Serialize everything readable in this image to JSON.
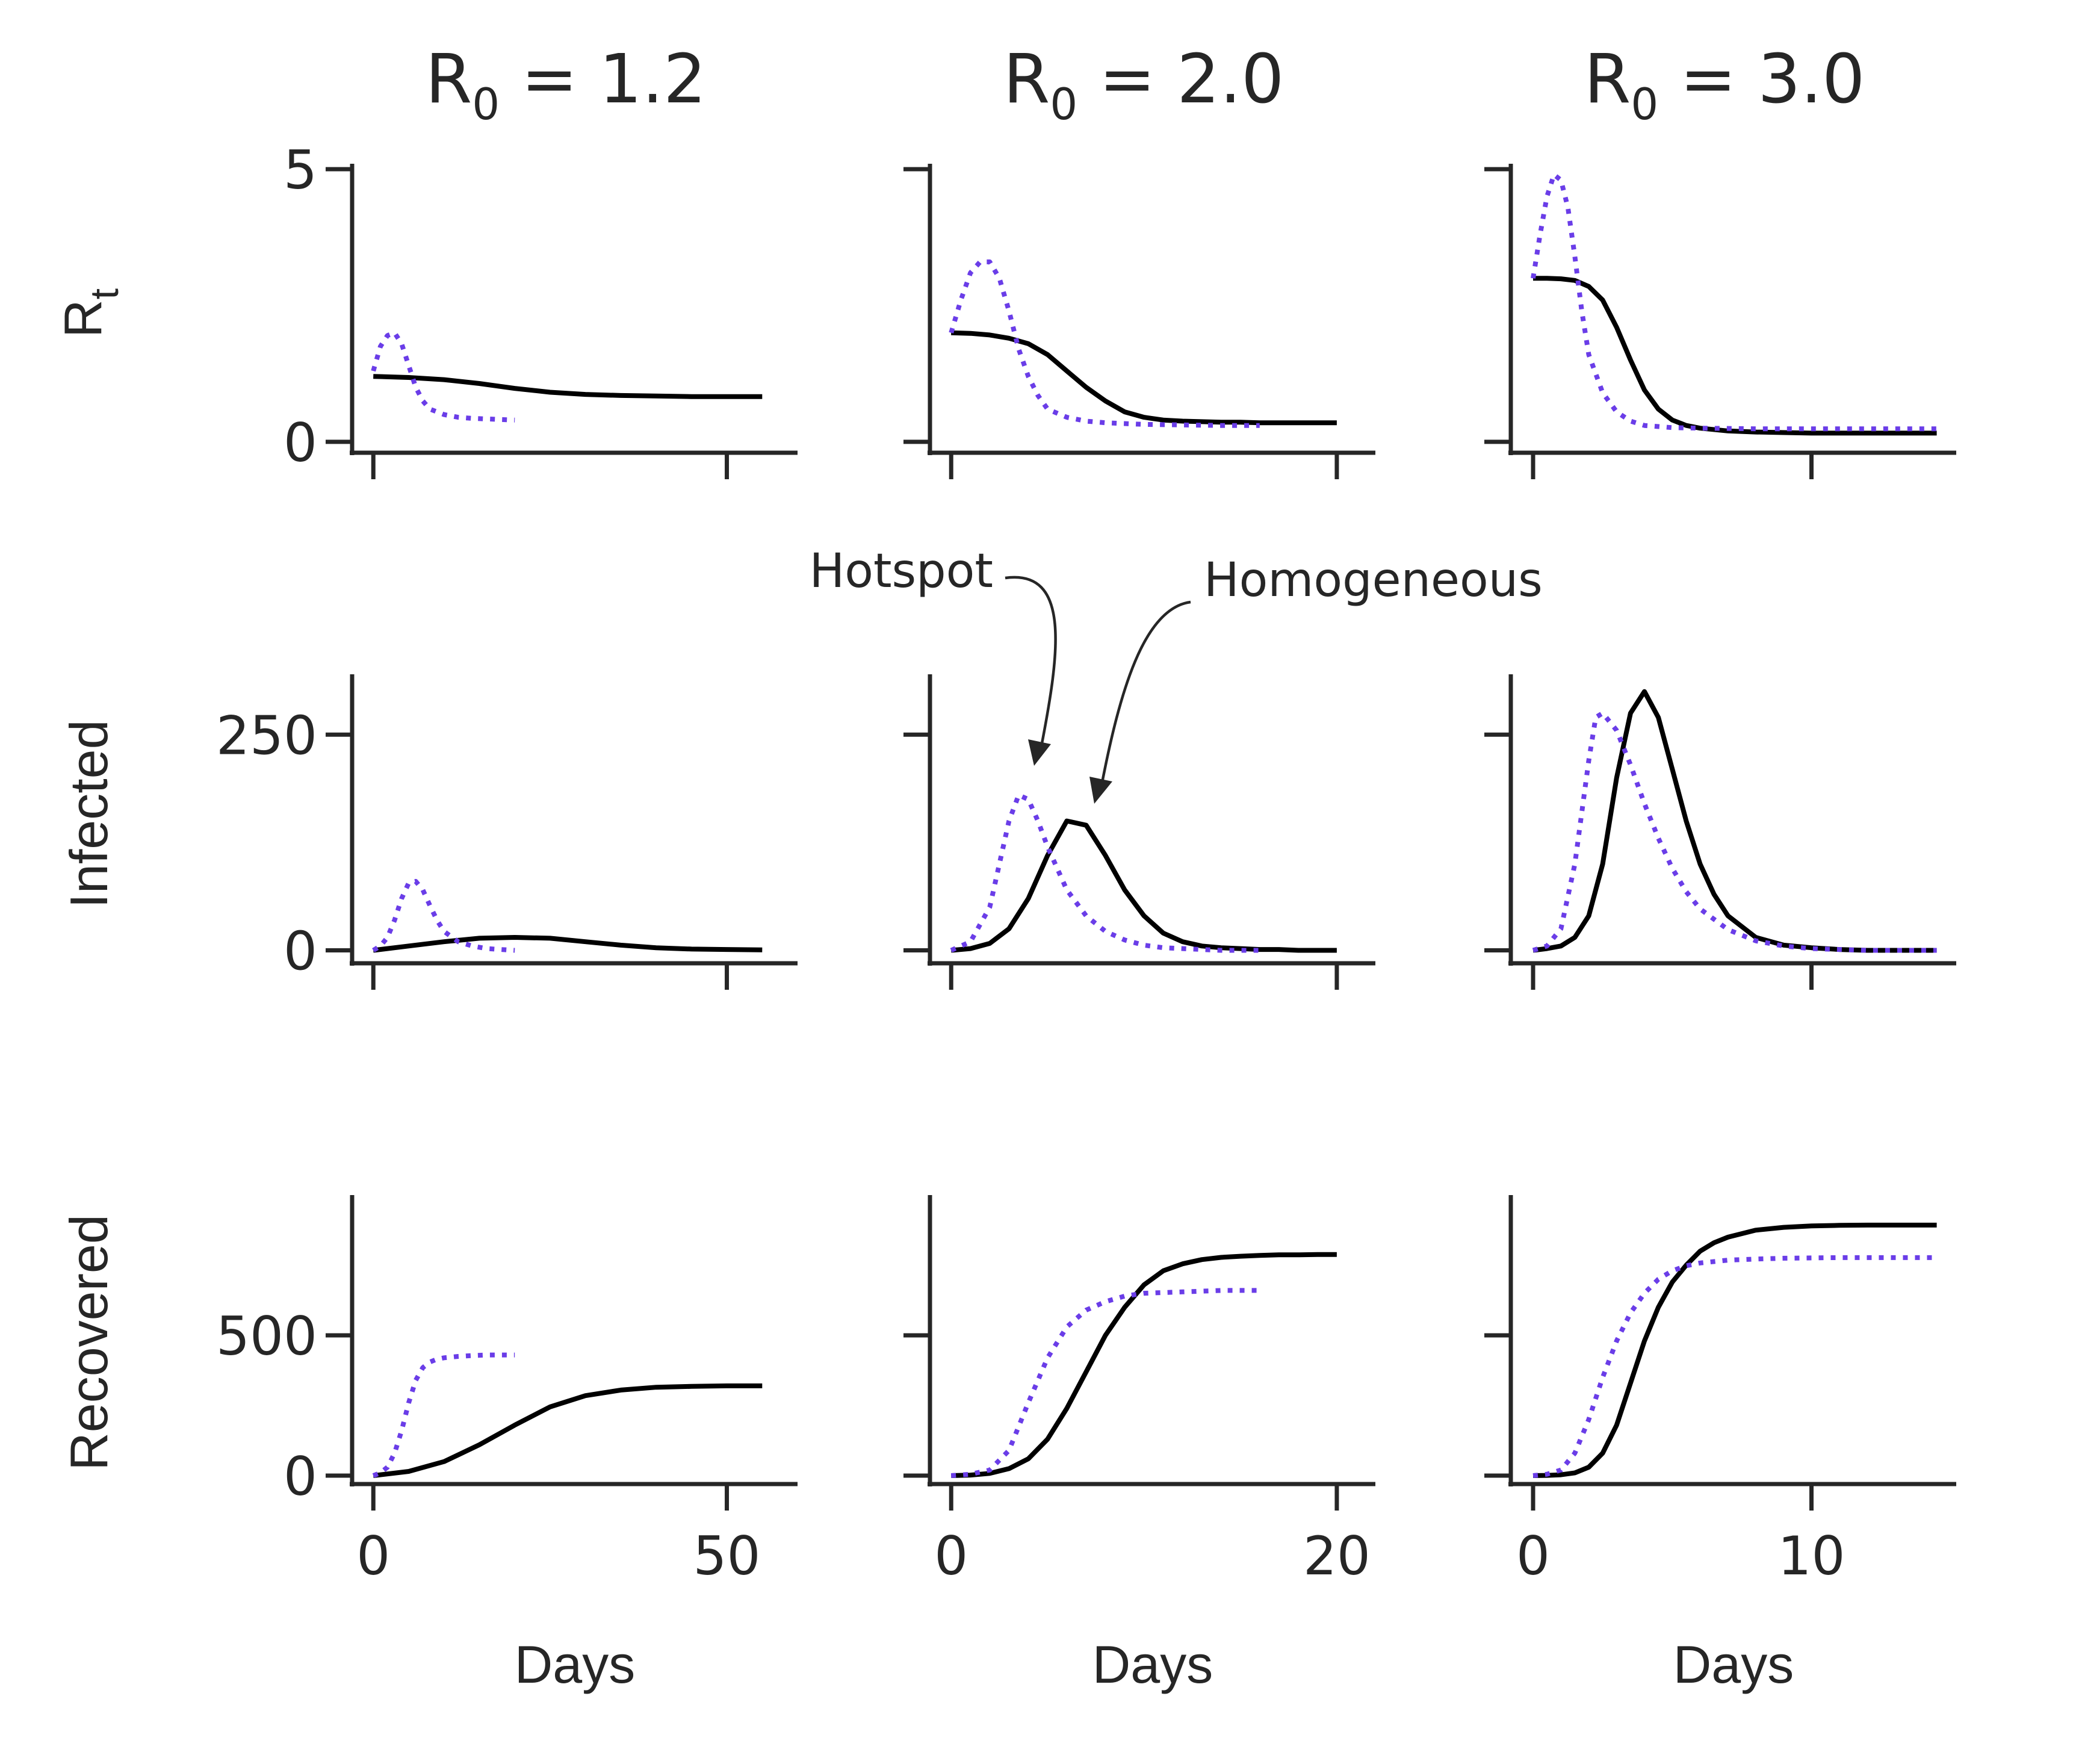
{
  "figure": {
    "row_labels": [
      {
        "main": "R",
        "sub": "t"
      },
      {
        "main": "Infected",
        "sub": ""
      },
      {
        "main": "Recovered",
        "sub": ""
      }
    ],
    "col_titles": [
      {
        "main": "R",
        "sub": "0",
        "rest": " = 1.2"
      },
      {
        "main": "R",
        "sub": "0",
        "rest": " = 2.0"
      },
      {
        "main": "R",
        "sub": "0",
        "rest": " = 3.0"
      }
    ],
    "xlabel": "Days",
    "annotations": {
      "hotspot": "Hotspot",
      "homogeneous": "Homogeneous"
    }
  },
  "colors": {
    "homogeneous": "#000000",
    "hotspot": "#6a3de8",
    "axis": "#262626"
  },
  "chart_data": [
    {
      "type": "line",
      "row": 0,
      "col": 0,
      "title": "R0 = 1.2",
      "ylabel": "Rt",
      "xlabel": "",
      "xlim": [
        -3,
        60
      ],
      "ylim": [
        -0.2,
        5.1
      ],
      "xticks": [
        0,
        50
      ],
      "yticks": [
        0,
        5
      ],
      "ytick_labels": [
        "0",
        "5"
      ],
      "xtick_labels": [
        "",
        ""
      ],
      "series": [
        {
          "name": "Homogeneous",
          "style": "solid",
          "x": [
            0,
            5,
            10,
            15,
            20,
            25,
            30,
            35,
            40,
            45,
            50,
            55
          ],
          "y": [
            1.2,
            1.18,
            1.14,
            1.07,
            0.98,
            0.91,
            0.87,
            0.85,
            0.84,
            0.83,
            0.83,
            0.83
          ]
        },
        {
          "name": "Hotspot",
          "style": "dotted",
          "x": [
            0,
            1,
            2,
            3,
            4,
            5,
            6,
            7,
            8,
            10,
            12,
            14,
            16,
            18,
            20
          ],
          "y": [
            1.3,
            1.75,
            1.95,
            2.0,
            1.8,
            1.4,
            1.0,
            0.75,
            0.6,
            0.5,
            0.45,
            0.43,
            0.42,
            0.41,
            0.4
          ]
        }
      ]
    },
    {
      "type": "line",
      "row": 0,
      "col": 1,
      "title": "R0 = 2.0",
      "ylabel": "",
      "xlabel": "",
      "xlim": [
        -1.1,
        22
      ],
      "ylim": [
        -0.2,
        5.1
      ],
      "xticks": [
        0,
        20
      ],
      "yticks": [
        0,
        5
      ],
      "ytick_labels": [
        "",
        ""
      ],
      "xtick_labels": [
        "",
        ""
      ],
      "series": [
        {
          "name": "Homogeneous",
          "style": "solid",
          "x": [
            0,
            1,
            2,
            3,
            4,
            5,
            6,
            7,
            8,
            9,
            10,
            11,
            12,
            13,
            14,
            15,
            16,
            17,
            18,
            19,
            20
          ],
          "y": [
            2.0,
            1.99,
            1.96,
            1.9,
            1.8,
            1.6,
            1.3,
            1.0,
            0.75,
            0.55,
            0.45,
            0.4,
            0.38,
            0.37,
            0.36,
            0.36,
            0.35,
            0.35,
            0.35,
            0.35,
            0.35
          ]
        },
        {
          "name": "Hotspot",
          "style": "dotted",
          "x": [
            0,
            0.5,
            1,
            1.5,
            2,
            2.5,
            3,
            3.5,
            4,
            4.5,
            5,
            6,
            7,
            8,
            10,
            12,
            14,
            16
          ],
          "y": [
            2.0,
            2.6,
            3.1,
            3.3,
            3.3,
            3.0,
            2.4,
            1.7,
            1.2,
            0.85,
            0.6,
            0.45,
            0.38,
            0.35,
            0.32,
            0.31,
            0.3,
            0.3
          ]
        }
      ]
    },
    {
      "type": "line",
      "row": 0,
      "col": 2,
      "title": "R0 = 3.0",
      "ylabel": "",
      "xlabel": "",
      "xlim": [
        -0.8,
        15.2
      ],
      "ylim": [
        -0.2,
        5.1
      ],
      "xticks": [
        0,
        10
      ],
      "yticks": [
        0,
        5
      ],
      "ytick_labels": [
        "",
        ""
      ],
      "xtick_labels": [
        "",
        ""
      ],
      "series": [
        {
          "name": "Homogeneous",
          "style": "solid",
          "x": [
            0,
            0.5,
            1,
            1.5,
            2,
            2.5,
            3,
            3.5,
            4,
            4.5,
            5,
            5.5,
            6,
            7,
            8,
            9,
            10,
            11,
            12,
            13,
            14,
            14.5
          ],
          "y": [
            3.0,
            3.0,
            2.99,
            2.96,
            2.85,
            2.6,
            2.1,
            1.5,
            0.95,
            0.6,
            0.4,
            0.3,
            0.25,
            0.2,
            0.18,
            0.17,
            0.16,
            0.16,
            0.16,
            0.16,
            0.16,
            0.16
          ]
        },
        {
          "name": "Hotspot",
          "style": "dotted",
          "x": [
            0,
            0.25,
            0.5,
            0.75,
            1,
            1.25,
            1.5,
            1.75,
            2,
            2.5,
            3,
            3.5,
            4,
            5,
            6,
            8,
            10,
            12,
            14,
            14.5
          ],
          "y": [
            3.0,
            3.8,
            4.5,
            4.9,
            4.8,
            4.3,
            3.4,
            2.4,
            1.6,
            0.9,
            0.55,
            0.38,
            0.3,
            0.26,
            0.25,
            0.24,
            0.24,
            0.24,
            0.24,
            0.24
          ]
        }
      ]
    },
    {
      "type": "line",
      "row": 1,
      "col": 0,
      "title": "",
      "ylabel": "Infected",
      "xlabel": "",
      "xlim": [
        -3,
        60
      ],
      "ylim": [
        -15,
        320
      ],
      "xticks": [
        0,
        50
      ],
      "yticks": [
        0,
        250
      ],
      "ytick_labels": [
        "0",
        "250"
      ],
      "xtick_labels": [
        "",
        ""
      ],
      "series": [
        {
          "name": "Homogeneous",
          "style": "solid",
          "x": [
            0,
            5,
            10,
            15,
            20,
            25,
            30,
            35,
            40,
            45,
            50,
            55
          ],
          "y": [
            0,
            5,
            10,
            14,
            15,
            14,
            10,
            6,
            3,
            1.5,
            1,
            0.5
          ]
        },
        {
          "name": "Hotspot",
          "style": "dotted",
          "x": [
            0,
            1,
            2,
            3,
            4,
            5,
            6,
            7,
            8,
            9,
            10,
            12,
            14,
            16,
            18,
            20
          ],
          "y": [
            0,
            5,
            15,
            35,
            60,
            78,
            80,
            70,
            52,
            35,
            22,
            10,
            5,
            2,
            1,
            0
          ]
        }
      ]
    },
    {
      "type": "line",
      "row": 1,
      "col": 1,
      "title": "",
      "ylabel": "",
      "xlabel": "",
      "xlim": [
        -1.1,
        22
      ],
      "ylim": [
        -15,
        320
      ],
      "xticks": [
        0,
        20
      ],
      "yticks": [
        0,
        250
      ],
      "ytick_labels": [
        "",
        ""
      ],
      "xtick_labels": [
        "",
        ""
      ],
      "series": [
        {
          "name": "Homogeneous",
          "style": "solid",
          "x": [
            0,
            1,
            2,
            3,
            4,
            5,
            6,
            7,
            8,
            9,
            10,
            11,
            12,
            13,
            14,
            15,
            16,
            17,
            18,
            19,
            20
          ],
          "y": [
            0,
            2,
            8,
            25,
            60,
            110,
            150,
            145,
            110,
            70,
            40,
            20,
            10,
            5,
            3,
            2,
            1,
            1,
            0,
            0,
            0
          ]
        },
        {
          "name": "Hotspot",
          "style": "dotted",
          "x": [
            0,
            1,
            2,
            2.5,
            3,
            3.5,
            4,
            4.5,
            5,
            6,
            7,
            8,
            9,
            10,
            11,
            12,
            13,
            14,
            15,
            16
          ],
          "y": [
            0,
            10,
            50,
            100,
            150,
            180,
            175,
            150,
            120,
            70,
            40,
            22,
            12,
            6,
            3,
            2,
            1,
            0,
            0,
            0
          ]
        }
      ]
    },
    {
      "type": "line",
      "row": 1,
      "col": 2,
      "title": "",
      "ylabel": "",
      "xlabel": "",
      "xlim": [
        -0.8,
        15.2
      ],
      "ylim": [
        -15,
        320
      ],
      "xticks": [
        0,
        10
      ],
      "yticks": [
        0,
        250
      ],
      "ytick_labels": [
        "",
        ""
      ],
      "xtick_labels": [
        "",
        ""
      ],
      "series": [
        {
          "name": "Homogeneous",
          "style": "solid",
          "x": [
            0,
            0.5,
            1,
            1.5,
            2,
            2.5,
            3,
            3.5,
            4,
            4.5,
            5,
            5.5,
            6,
            6.5,
            7,
            8,
            9,
            10,
            11,
            12,
            13,
            14,
            14.5
          ],
          "y": [
            0,
            2,
            5,
            15,
            40,
            100,
            200,
            275,
            300,
            270,
            210,
            150,
            100,
            65,
            40,
            15,
            6,
            3,
            1,
            0,
            0,
            0,
            0
          ]
        },
        {
          "name": "Hotspot",
          "style": "dotted",
          "x": [
            0,
            0.5,
            1,
            1.5,
            2,
            2.25,
            2.5,
            3,
            3.5,
            4,
            4.5,
            5,
            5.5,
            6,
            7,
            8,
            9,
            10,
            11,
            12,
            13,
            14,
            14.5
          ],
          "y": [
            0,
            5,
            25,
            100,
            220,
            270,
            275,
            255,
            215,
            170,
            130,
            95,
            68,
            48,
            24,
            11,
            5,
            2,
            1,
            0,
            0,
            0,
            0
          ]
        }
      ]
    },
    {
      "type": "line",
      "row": 2,
      "col": 0,
      "title": "",
      "ylabel": "Recovered",
      "xlabel": "Days",
      "xlim": [
        -3,
        60
      ],
      "ylim": [
        -30,
        1000
      ],
      "xticks": [
        0,
        50
      ],
      "yticks": [
        0,
        500
      ],
      "ytick_labels": [
        "0",
        "500"
      ],
      "xtick_labels": [
        "0",
        "50"
      ],
      "series": [
        {
          "name": "Homogeneous",
          "style": "solid",
          "x": [
            0,
            5,
            10,
            15,
            20,
            25,
            30,
            35,
            40,
            45,
            50,
            55
          ],
          "y": [
            0,
            15,
            50,
            110,
            180,
            245,
            285,
            305,
            315,
            318,
            320,
            320
          ]
        },
        {
          "name": "Hotspot",
          "style": "dotted",
          "x": [
            0,
            1,
            2,
            3,
            4,
            5,
            6,
            7,
            8,
            9,
            10,
            12,
            14,
            16,
            18,
            20
          ],
          "y": [
            0,
            10,
            30,
            80,
            160,
            260,
            340,
            385,
            405,
            415,
            420,
            425,
            428,
            430,
            430,
            430
          ]
        }
      ]
    },
    {
      "type": "line",
      "row": 2,
      "col": 1,
      "title": "",
      "ylabel": "",
      "xlabel": "Days",
      "xlim": [
        -1.1,
        22
      ],
      "ylim": [
        -30,
        1000
      ],
      "xticks": [
        0,
        20
      ],
      "yticks": [
        0,
        500
      ],
      "ytick_labels": [
        "",
        ""
      ],
      "xtick_labels": [
        "0",
        "20"
      ],
      "series": [
        {
          "name": "Homogeneous",
          "style": "solid",
          "x": [
            0,
            1,
            2,
            3,
            4,
            5,
            6,
            7,
            8,
            9,
            10,
            11,
            12,
            13,
            14,
            15,
            16,
            17,
            18,
            19,
            20
          ],
          "y": [
            0,
            2,
            8,
            25,
            60,
            130,
            240,
            370,
            500,
            600,
            680,
            730,
            755,
            770,
            778,
            782,
            785,
            787,
            787,
            788,
            788
          ]
        },
        {
          "name": "Hotspot",
          "style": "dotted",
          "x": [
            0,
            1,
            2,
            3,
            4,
            5,
            6,
            7,
            8,
            9,
            10,
            12,
            14,
            16
          ],
          "y": [
            0,
            5,
            20,
            90,
            260,
            420,
            530,
            590,
            620,
            640,
            650,
            655,
            660,
            660
          ]
        }
      ]
    },
    {
      "type": "line",
      "row": 2,
      "col": 2,
      "title": "",
      "ylabel": "",
      "xlabel": "Days",
      "xlim": [
        -0.8,
        15.2
      ],
      "ylim": [
        -30,
        1000
      ],
      "xticks": [
        0,
        10
      ],
      "yticks": [
        0,
        500
      ],
      "ytick_labels": [
        "",
        ""
      ],
      "xtick_labels": [
        "0",
        "10"
      ],
      "series": [
        {
          "name": "Homogeneous",
          "style": "solid",
          "x": [
            0,
            0.5,
            1,
            1.5,
            2,
            2.5,
            3,
            3.5,
            4,
            4.5,
            5,
            5.5,
            6,
            6.5,
            7,
            8,
            9,
            10,
            11,
            12,
            13,
            14,
            14.5
          ],
          "y": [
            0,
            1,
            3,
            10,
            30,
            80,
            180,
            330,
            480,
            600,
            690,
            750,
            800,
            830,
            850,
            875,
            885,
            890,
            892,
            893,
            893,
            893,
            893
          ]
        },
        {
          "name": "Hotspot",
          "style": "dotted",
          "x": [
            0,
            0.5,
            1,
            1.5,
            2,
            2.5,
            3,
            3.5,
            4,
            4.5,
            5,
            5.5,
            6,
            7,
            8,
            9,
            10,
            11,
            12,
            13,
            14,
            14.5
          ],
          "y": [
            0,
            5,
            20,
            80,
            200,
            350,
            480,
            580,
            650,
            700,
            730,
            748,
            758,
            768,
            772,
            775,
            776,
            777,
            777,
            777,
            777,
            777
          ]
        }
      ]
    }
  ]
}
